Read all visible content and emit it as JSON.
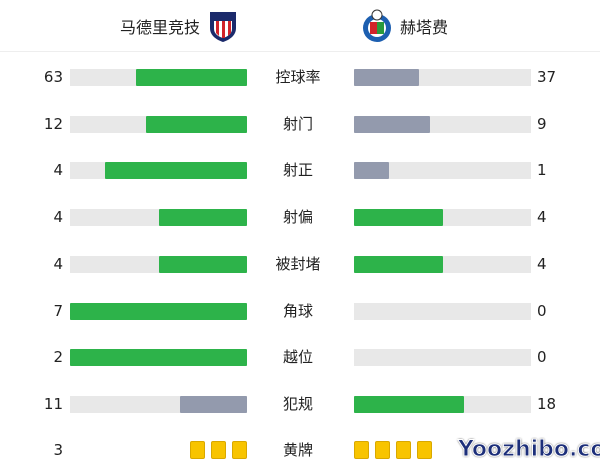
{
  "header": {
    "home": {
      "name": "马德里竞技",
      "logo": "atletico-madrid-crest"
    },
    "away": {
      "name": "赫塔费",
      "logo": "getafe-crest"
    }
  },
  "colors": {
    "leader": "#2db34a",
    "trailer": "#939aad",
    "track": "#e8e8e8",
    "card": "#f8c400"
  },
  "stats": [
    {
      "label": "控球率",
      "home": "63",
      "away": "37"
    },
    {
      "label": "射门",
      "home": "12",
      "away": "9"
    },
    {
      "label": "射正",
      "home": "4",
      "away": "1"
    },
    {
      "label": "射偏",
      "home": "4",
      "away": "4"
    },
    {
      "label": "被封堵",
      "home": "4",
      "away": "4"
    },
    {
      "label": "角球",
      "home": "7",
      "away": "0"
    },
    {
      "label": "越位",
      "home": "2",
      "away": "0"
    },
    {
      "label": "犯规",
      "home": "11",
      "away": "18"
    }
  ],
  "yellow_cards": {
    "label": "黄牌",
    "home": "3",
    "home_cards": 3,
    "away_cards": 4
  },
  "watermark": "Yoozhibo.com"
}
